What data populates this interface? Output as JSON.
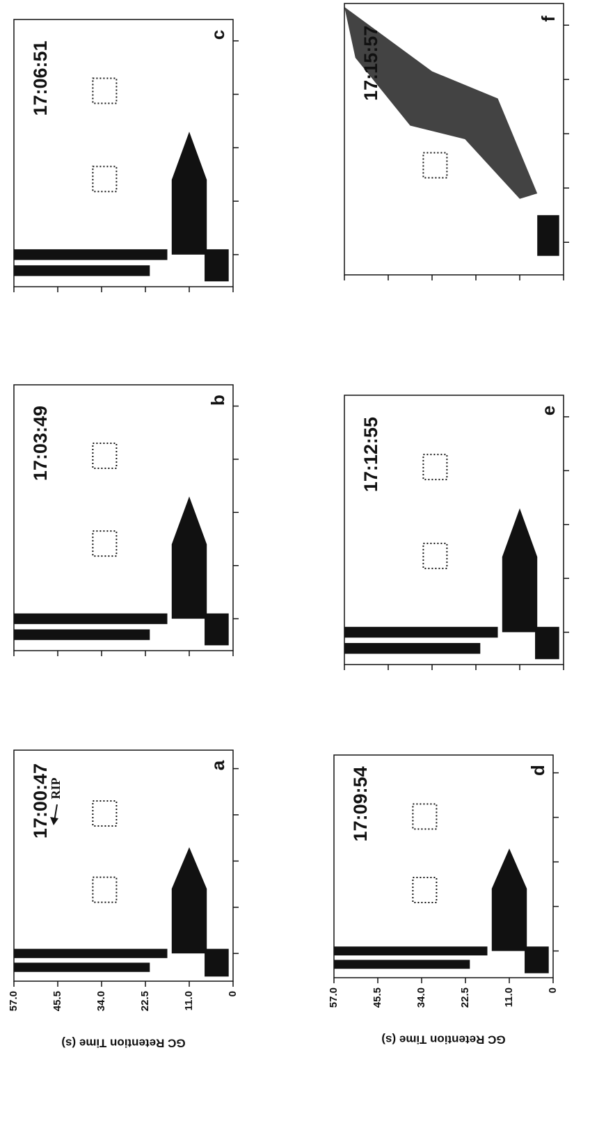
{
  "panels": [
    {
      "letter": "a",
      "time": "17:00:47"
    },
    {
      "letter": "b",
      "time": "17:03:49"
    },
    {
      "letter": "c",
      "time": "17:06:51"
    },
    {
      "letter": "d",
      "time": "17:09:54"
    },
    {
      "letter": "e",
      "time": "17:12:55"
    },
    {
      "letter": "f",
      "time": "17:15:57"
    }
  ],
  "axis": {
    "title": "GC Retention Time (s)",
    "ticks": [
      "57.0",
      "45.5",
      "34.0",
      "22.5",
      "11.0",
      "0"
    ]
  },
  "annotation": "RIP"
}
